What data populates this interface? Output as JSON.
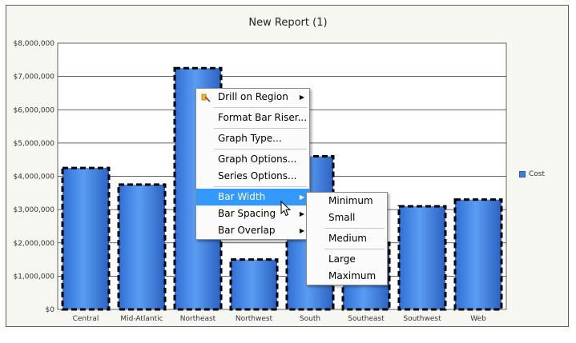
{
  "chart_data": {
    "type": "bar",
    "title": "New Report (1)",
    "categories": [
      "Central",
      "Mid-Atlantic",
      "Northeast",
      "Northwest",
      "South",
      "Southeast",
      "Southwest",
      "Web"
    ],
    "series": [
      {
        "name": "Cost",
        "values": [
          4250000,
          3750000,
          7250000,
          1500000,
          4600000,
          2000000,
          3100000,
          3300000
        ]
      }
    ],
    "ylim": [
      0,
      8000000
    ],
    "yticks": [
      "$0",
      "$1,000,000",
      "$2,000,000",
      "$3,000,000",
      "$4,000,000",
      "$5,000,000",
      "$6,000,000",
      "$7,000,000",
      "$8,000,000"
    ],
    "grid": true,
    "legend_position": "right",
    "bar_color": "#3b7de0",
    "selected": true
  },
  "context_menu": {
    "items": [
      {
        "label": "Drill on Region",
        "submenu": true,
        "icon": "drill-icon"
      },
      {
        "sep": true
      },
      {
        "label": "Format Bar Riser..."
      },
      {
        "sep": true
      },
      {
        "label": "Graph Type..."
      },
      {
        "sep": true
      },
      {
        "label": "Graph Options..."
      },
      {
        "label": "Series Options..."
      },
      {
        "sep": true
      },
      {
        "label": "Bar Width",
        "submenu": true,
        "highlighted": true
      },
      {
        "label": "Bar Spacing",
        "submenu": true
      },
      {
        "label": "Bar Overlap",
        "submenu": true
      }
    ]
  },
  "bar_width_submenu": {
    "items": [
      {
        "label": "Minimum"
      },
      {
        "label": "Small"
      },
      {
        "sep": true
      },
      {
        "label": "Medium"
      },
      {
        "sep": true
      },
      {
        "label": "Large"
      },
      {
        "label": "Maximum"
      }
    ]
  }
}
